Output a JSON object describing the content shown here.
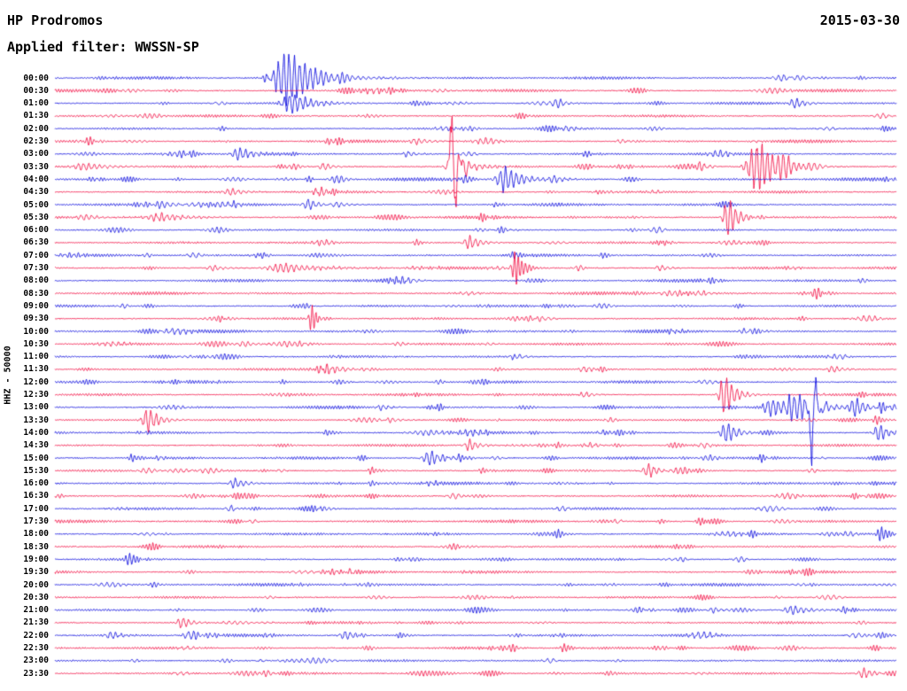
{
  "header": {
    "station": "HP Prodromos",
    "date": "2015-03-30",
    "filter_label": "Applied filter: WWSSN-SP"
  },
  "axis": {
    "left_label": "HHZ - 50000"
  },
  "colors": {
    "trace_blue": "#0000dd",
    "trace_red": "#f30038",
    "text": "#000000",
    "background": "#ffffff"
  },
  "chart_data": {
    "type": "line",
    "subtype": "helicorder-seismogram",
    "station": "HP Prodromos",
    "date": "2015-03-30",
    "filter": "WWSSN-SP",
    "channel": "HHZ",
    "gain": "50000",
    "minutes_per_row": 30,
    "trace_colors": [
      "#0000dd",
      "#f30038"
    ],
    "color_rule": "alternate starting blue at 00:00",
    "row_labels": [
      "00:00",
      "00:30",
      "01:00",
      "01:30",
      "02:00",
      "02:30",
      "03:00",
      "03:30",
      "04:00",
      "04:30",
      "05:00",
      "05:30",
      "06:00",
      "06:30",
      "07:00",
      "07:30",
      "08:00",
      "08:30",
      "09:00",
      "09:30",
      "10:00",
      "10:30",
      "11:00",
      "11:30",
      "12:00",
      "12:30",
      "13:00",
      "13:30",
      "14:00",
      "14:30",
      "15:00",
      "15:30",
      "16:00",
      "16:30",
      "17:00",
      "17:30",
      "18:00",
      "18:30",
      "19:00",
      "19:30",
      "20:00",
      "20:30",
      "21:00",
      "21:30",
      "22:00",
      "22:30",
      "23:00",
      "23:30"
    ],
    "events_format": [
      "row_index",
      "x_px",
      "amplitude_px",
      "width_px"
    ],
    "events": [
      [
        0,
        325,
        34,
        30
      ],
      [
        0,
        300,
        6,
        6
      ],
      [
        2,
        330,
        13,
        22
      ],
      [
        2,
        630,
        5,
        10
      ],
      [
        2,
        897,
        7,
        12
      ],
      [
        4,
        640,
        4,
        10
      ],
      [
        5,
        470,
        4,
        15
      ],
      [
        5,
        700,
        3,
        10
      ],
      [
        6,
        270,
        8,
        16
      ],
      [
        6,
        460,
        4,
        10
      ],
      [
        6,
        660,
        4,
        8
      ],
      [
        7,
        510,
        80,
        6
      ],
      [
        7,
        512,
        20,
        14
      ],
      [
        7,
        855,
        34,
        20
      ],
      [
        7,
        885,
        12,
        12
      ],
      [
        7,
        95,
        5,
        25
      ],
      [
        7,
        365,
        5,
        10
      ],
      [
        7,
        790,
        6,
        10
      ],
      [
        8,
        570,
        17,
        18
      ],
      [
        8,
        525,
        6,
        8
      ],
      [
        8,
        625,
        5,
        10
      ],
      [
        9,
        260,
        5,
        14
      ],
      [
        9,
        360,
        6,
        10
      ],
      [
        9,
        675,
        4,
        8
      ],
      [
        10,
        348,
        8,
        10
      ],
      [
        10,
        380,
        4,
        12
      ],
      [
        10,
        560,
        4,
        8
      ],
      [
        11,
        822,
        27,
        10
      ],
      [
        11,
        180,
        5,
        30
      ],
      [
        11,
        95,
        4,
        15
      ],
      [
        11,
        545,
        5,
        8
      ],
      [
        12,
        565,
        5,
        8
      ],
      [
        13,
        530,
        9,
        12
      ],
      [
        13,
        470,
        4,
        8
      ],
      [
        14,
        580,
        5,
        8
      ],
      [
        14,
        680,
        4,
        8
      ],
      [
        15,
        583,
        22,
        9
      ],
      [
        15,
        320,
        6,
        35
      ],
      [
        15,
        240,
        4,
        12
      ],
      [
        15,
        745,
        4,
        10
      ],
      [
        17,
        790,
        4,
        10
      ],
      [
        19,
        352,
        16,
        7
      ],
      [
        19,
        250,
        4,
        8
      ],
      [
        20,
        760,
        4,
        10
      ],
      [
        21,
        275,
        4,
        12
      ],
      [
        21,
        450,
        3,
        10
      ],
      [
        22,
        580,
        4,
        10
      ],
      [
        23,
        370,
        5,
        25
      ],
      [
        23,
        660,
        4,
        12
      ],
      [
        23,
        940,
        5,
        10
      ],
      [
        25,
        818,
        28,
        11
      ],
      [
        25,
        660,
        4,
        10
      ],
      [
        26,
        916,
        78,
        5
      ],
      [
        26,
        900,
        16,
        25
      ],
      [
        26,
        870,
        12,
        15
      ],
      [
        26,
        965,
        12,
        12
      ],
      [
        26,
        995,
        8,
        8
      ],
      [
        26,
        430,
        4,
        10
      ],
      [
        27,
        167,
        16,
        12
      ],
      [
        27,
        440,
        4,
        10
      ],
      [
        27,
        990,
        6,
        8
      ],
      [
        28,
        820,
        14,
        12
      ],
      [
        28,
        370,
        5,
        8
      ],
      [
        28,
        992,
        12,
        10
      ],
      [
        29,
        530,
        8,
        10
      ],
      [
        29,
        630,
        4,
        8
      ],
      [
        30,
        485,
        10,
        14
      ],
      [
        30,
        520,
        6,
        8
      ],
      [
        30,
        150,
        6,
        8
      ],
      [
        30,
        860,
        5,
        8
      ],
      [
        31,
        732,
        9,
        12
      ],
      [
        31,
        420,
        5,
        8
      ],
      [
        31,
        545,
        4,
        8
      ],
      [
        32,
        265,
        7,
        12
      ],
      [
        32,
        420,
        4,
        8
      ],
      [
        33,
        965,
        5,
        8
      ],
      [
        35,
        790,
        4,
        8
      ],
      [
        36,
        995,
        10,
        9
      ],
      [
        36,
        630,
        5,
        8
      ],
      [
        38,
        146,
        9,
        9
      ],
      [
        42,
        895,
        6,
        18
      ],
      [
        42,
        805,
        4,
        10
      ],
      [
        43,
        205,
        8,
        10
      ],
      [
        44,
        125,
        5,
        12
      ],
      [
        44,
        213,
        7,
        10
      ],
      [
        44,
        390,
        6,
        12
      ],
      [
        44,
        452,
        5,
        8
      ],
      [
        45,
        637,
        7,
        7
      ],
      [
        47,
        975,
        7,
        12
      ]
    ]
  }
}
